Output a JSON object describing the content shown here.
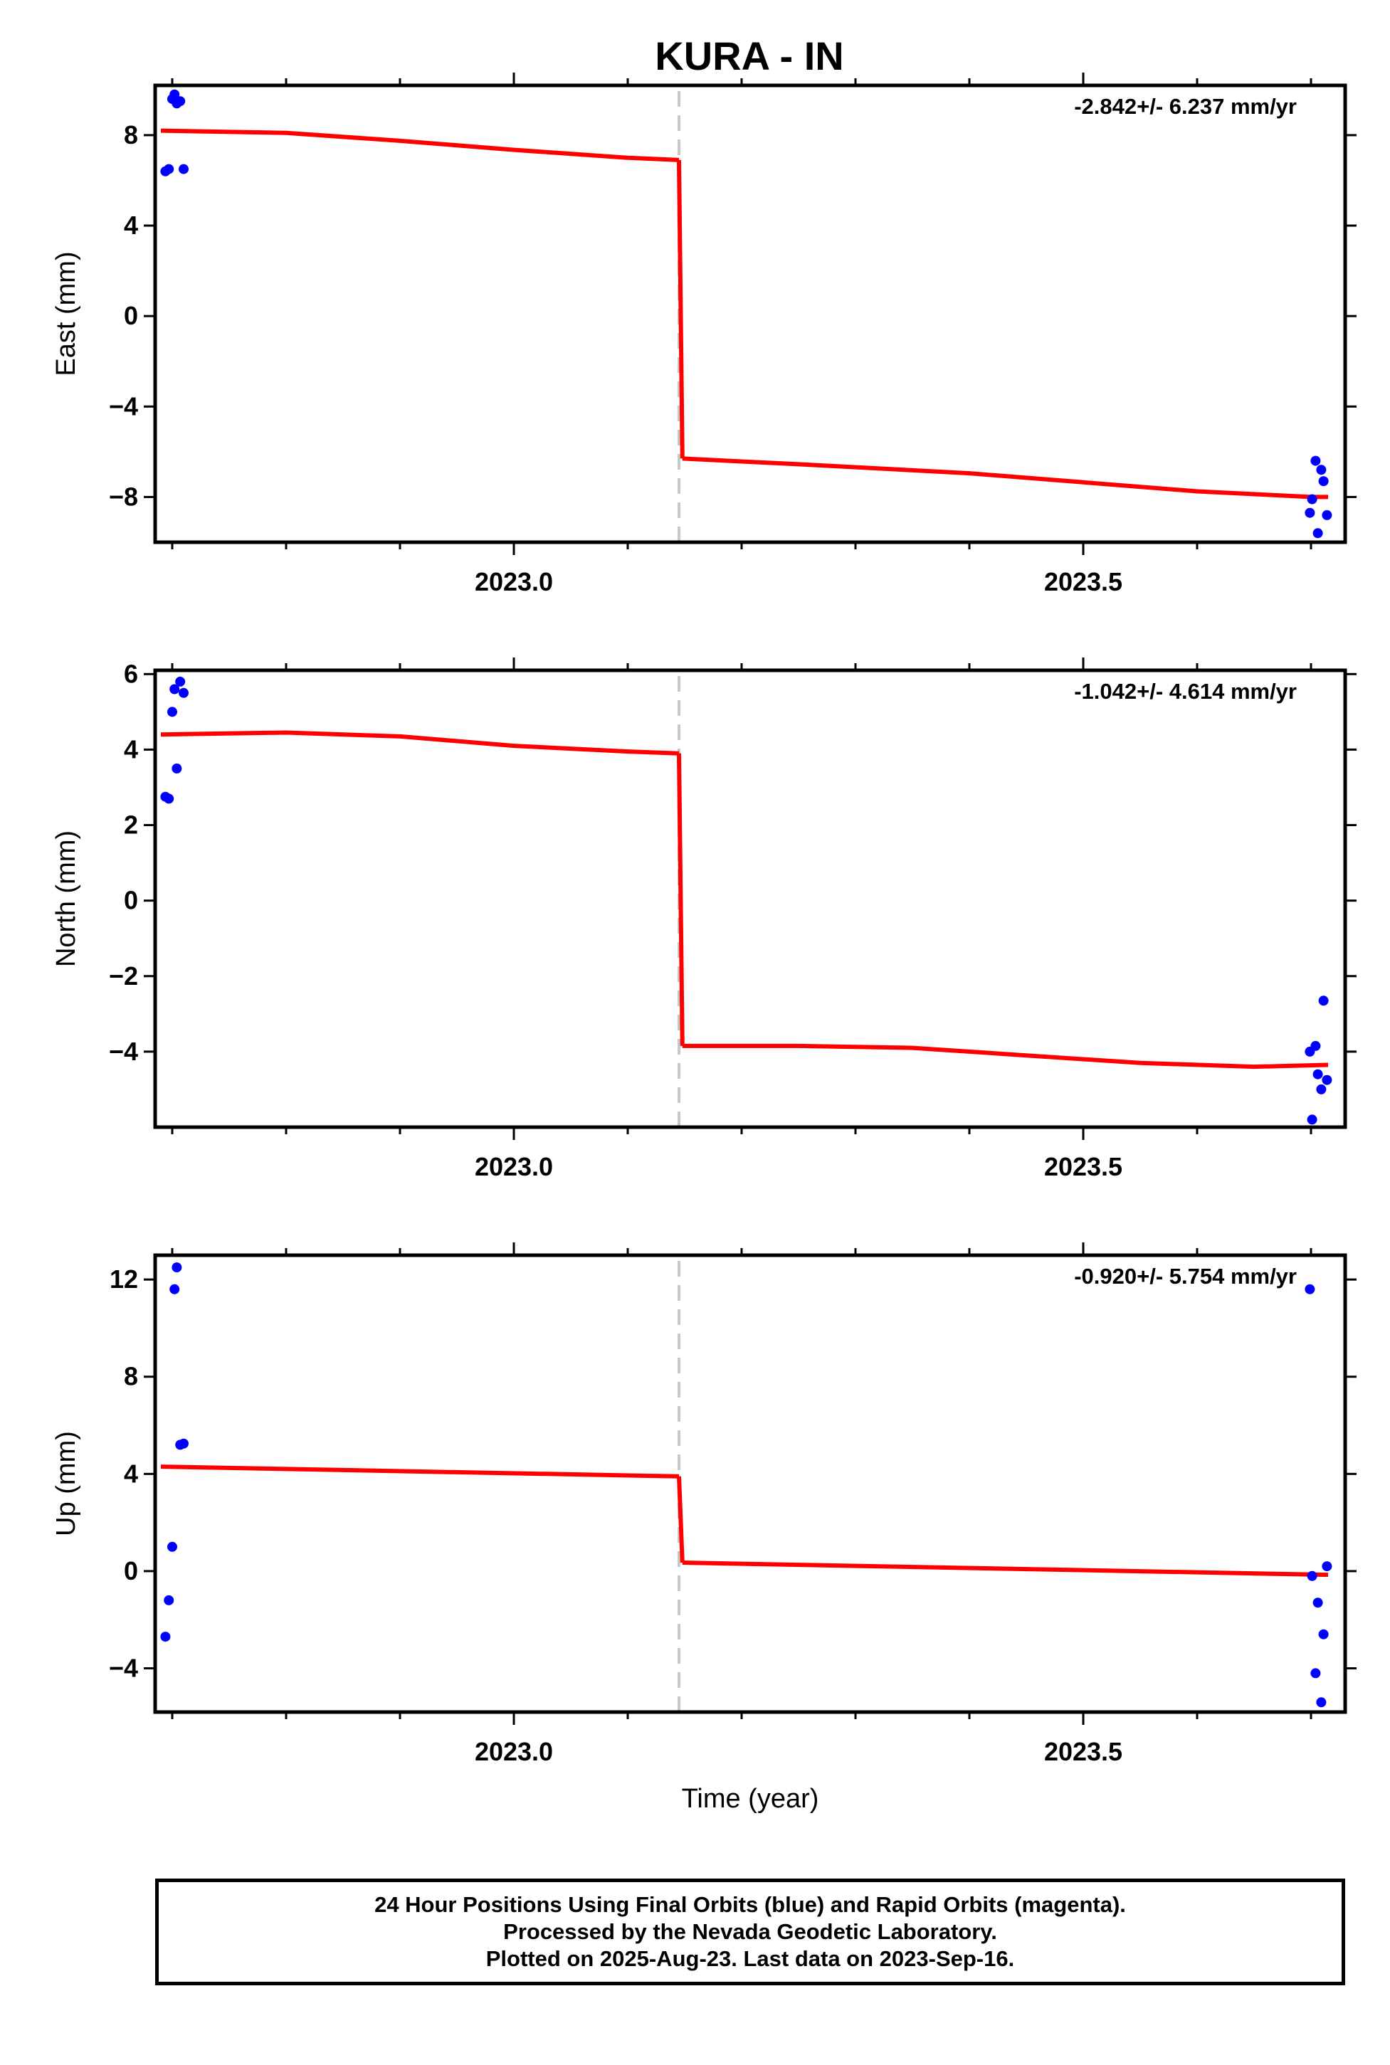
{
  "title": "KURA - IN",
  "colors": {
    "data_points": "#0000ff",
    "model_line": "#ff0000",
    "offset_line": "#c8c8c8",
    "frame": "#000000"
  },
  "chart_data": [
    {
      "type": "scatter",
      "ylabel": "East (mm)",
      "xlabel": "",
      "rate_text": "-2.842+/- 6.237 mm/yr",
      "xlim": [
        2022.685,
        2023.73
      ],
      "ylim": [
        -10,
        10.2
      ],
      "yticks": [
        -8,
        -4,
        0,
        4,
        8
      ],
      "xticks": [
        2023.0,
        2023.5
      ],
      "xtick_labels": [
        "2023.0",
        "2023.5"
      ],
      "offset_x": 2023.145,
      "points": [
        {
          "x": 2022.694,
          "y": 6.4
        },
        {
          "x": 2022.697,
          "y": 6.5
        },
        {
          "x": 2022.7,
          "y": 9.6
        },
        {
          "x": 2022.702,
          "y": 9.8
        },
        {
          "x": 2022.704,
          "y": 9.4
        },
        {
          "x": 2022.707,
          "y": 9.5
        },
        {
          "x": 2022.71,
          "y": 6.5
        },
        {
          "x": 2023.699,
          "y": -8.7
        },
        {
          "x": 2023.701,
          "y": -8.1
        },
        {
          "x": 2023.704,
          "y": -6.4
        },
        {
          "x": 2023.706,
          "y": -9.6
        },
        {
          "x": 2023.709,
          "y": -6.8
        },
        {
          "x": 2023.711,
          "y": -7.3
        },
        {
          "x": 2023.714,
          "y": -8.8
        }
      ],
      "model_segments": [
        [
          [
            2022.69,
            8.2
          ],
          [
            2022.8,
            8.1
          ],
          [
            2022.9,
            7.75
          ],
          [
            2023.0,
            7.35
          ],
          [
            2023.1,
            7.0
          ],
          [
            2023.145,
            6.9
          ]
        ],
        [
          [
            2023.145,
            6.9
          ],
          [
            2023.148,
            -6.3
          ]
        ],
        [
          [
            2023.148,
            -6.3
          ],
          [
            2023.25,
            -6.55
          ],
          [
            2023.4,
            -6.95
          ],
          [
            2023.5,
            -7.35
          ],
          [
            2023.6,
            -7.75
          ],
          [
            2023.7,
            -8.0
          ],
          [
            2023.715,
            -8.0
          ]
        ]
      ]
    },
    {
      "type": "scatter",
      "ylabel": "North (mm)",
      "xlabel": "",
      "rate_text": "-1.042+/- 4.614 mm/yr",
      "xlim": [
        2022.685,
        2023.73
      ],
      "ylim": [
        -6,
        6.1
      ],
      "yticks": [
        -4,
        -2,
        0,
        2,
        4,
        6
      ],
      "xticks": [
        2023.0,
        2023.5
      ],
      "xtick_labels": [
        "2023.0",
        "2023.5"
      ],
      "offset_x": 2023.145,
      "points": [
        {
          "x": 2022.694,
          "y": 2.75
        },
        {
          "x": 2022.697,
          "y": 2.7
        },
        {
          "x": 2022.7,
          "y": 5.0
        },
        {
          "x": 2022.702,
          "y": 5.6
        },
        {
          "x": 2022.704,
          "y": 3.5
        },
        {
          "x": 2022.707,
          "y": 5.8
        },
        {
          "x": 2022.71,
          "y": 5.5
        },
        {
          "x": 2023.699,
          "y": -4.0
        },
        {
          "x": 2023.701,
          "y": -5.8
        },
        {
          "x": 2023.704,
          "y": -3.85
        },
        {
          "x": 2023.706,
          "y": -4.6
        },
        {
          "x": 2023.709,
          "y": -5.0
        },
        {
          "x": 2023.711,
          "y": -2.65
        },
        {
          "x": 2023.714,
          "y": -4.75
        }
      ],
      "model_segments": [
        [
          [
            2022.69,
            4.4
          ],
          [
            2022.8,
            4.45
          ],
          [
            2022.9,
            4.35
          ],
          [
            2023.0,
            4.1
          ],
          [
            2023.1,
            3.95
          ],
          [
            2023.145,
            3.9
          ]
        ],
        [
          [
            2023.145,
            3.9
          ],
          [
            2023.148,
            -3.85
          ]
        ],
        [
          [
            2023.148,
            -3.85
          ],
          [
            2023.25,
            -3.85
          ],
          [
            2023.35,
            -3.9
          ],
          [
            2023.45,
            -4.1
          ],
          [
            2023.55,
            -4.3
          ],
          [
            2023.65,
            -4.4
          ],
          [
            2023.715,
            -4.35
          ]
        ]
      ]
    },
    {
      "type": "scatter",
      "ylabel": "Up (mm)",
      "xlabel": "Time (year)",
      "rate_text": "-0.920+/- 5.754 mm/yr",
      "xlim": [
        2022.685,
        2023.73
      ],
      "ylim": [
        -5.8,
        13.0
      ],
      "yticks": [
        -4,
        0,
        4,
        8,
        12
      ],
      "xticks": [
        2023.0,
        2023.5
      ],
      "xtick_labels": [
        "2023.0",
        "2023.5"
      ],
      "offset_x": 2023.145,
      "points": [
        {
          "x": 2022.694,
          "y": -2.7
        },
        {
          "x": 2022.697,
          "y": -1.2
        },
        {
          "x": 2022.7,
          "y": 1.0
        },
        {
          "x": 2022.702,
          "y": 11.6
        },
        {
          "x": 2022.704,
          "y": 12.5
        },
        {
          "x": 2022.707,
          "y": 5.2
        },
        {
          "x": 2022.71,
          "y": 5.25
        },
        {
          "x": 2023.699,
          "y": 11.6
        },
        {
          "x": 2023.701,
          "y": -0.2
        },
        {
          "x": 2023.704,
          "y": -4.2
        },
        {
          "x": 2023.706,
          "y": -1.3
        },
        {
          "x": 2023.709,
          "y": -5.4
        },
        {
          "x": 2023.711,
          "y": -2.6
        },
        {
          "x": 2023.714,
          "y": 0.2
        }
      ],
      "model_segments": [
        [
          [
            2022.69,
            4.3
          ],
          [
            2023.145,
            3.9
          ]
        ],
        [
          [
            2023.145,
            3.9
          ],
          [
            2023.148,
            0.35
          ]
        ],
        [
          [
            2023.148,
            0.35
          ],
          [
            2023.715,
            -0.15
          ]
        ]
      ]
    }
  ],
  "footer": {
    "line1": "24 Hour Positions Using Final Orbits (blue) and Rapid Orbits (magenta).",
    "line2": "Processed by the Nevada Geodetic Laboratory.",
    "line3": "Plotted on 2025-Aug-23. Last data on 2023-Sep-16."
  }
}
